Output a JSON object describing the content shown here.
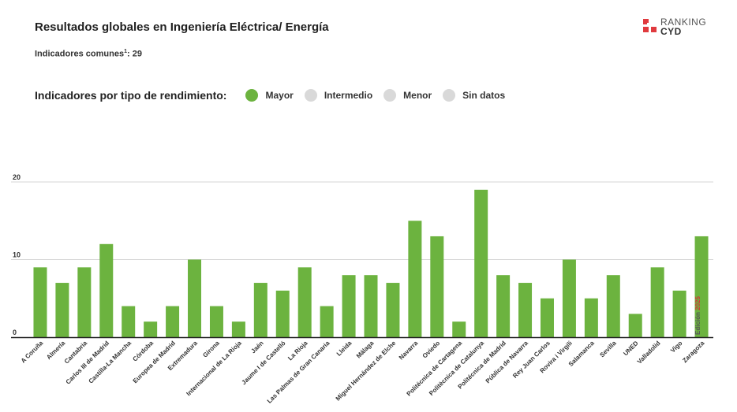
{
  "header": {
    "title": "Resultados globales en Ingeniería Eléctrica/ Energía",
    "subtitle_prefix": "Indicadores comunes",
    "subtitle_sup": "1",
    "subtitle_suffix": ": 29"
  },
  "logo": {
    "line1": "RANKING",
    "line2": "CYD"
  },
  "legend": {
    "caption": "Indicadores por tipo de rendimiento:",
    "items": [
      {
        "label": "Mayor",
        "color": "#6cb33f"
      },
      {
        "label": "Intermedio",
        "color": "#d9d9d9"
      },
      {
        "label": "Menor",
        "color": "#d9d9d9"
      },
      {
        "label": "Sin datos",
        "color": "#d9d9d9"
      }
    ]
  },
  "edition": {
    "label": "Edición",
    "year": "2025"
  },
  "chart_data": {
    "type": "bar",
    "categories": [
      "A Coruña",
      "Almería",
      "Cantabria",
      "Carlos III de Madrid",
      "Castilla-La Mancha",
      "Córdoba",
      "Europea de Madrid",
      "Extremadura",
      "Girona",
      "Internacional de La Rioja",
      "Jaén",
      "Jaume I de Castelló",
      "La Rioja",
      "Las Palmas de Gran Canaria",
      "Lleida",
      "Málaga",
      "Miguel Hernández de Elche",
      "Navarra",
      "Oviedo",
      "Politécnica de Cartagena",
      "Politècnica de Catalunya",
      "Politécnica de Madrid",
      "Pública de Navarra",
      "Rey Juan Carlos",
      "Rovira i Virgili",
      "Salamanca",
      "Sevilla",
      "UNED",
      "Valladolid",
      "Vigo",
      "Zaragoza"
    ],
    "series": [
      {
        "values": [
          9,
          7,
          9,
          12,
          4,
          2,
          4,
          10,
          4,
          2,
          7,
          6,
          9,
          4,
          8,
          8,
          7,
          15,
          13,
          2,
          19,
          8,
          7,
          5,
          10,
          5,
          8,
          3,
          9,
          6,
          13
        ],
        "color": "#6cb33f"
      }
    ],
    "yticks": [
      0,
      10,
      20
    ],
    "ylim": [
      0,
      20
    ],
    "grid": true,
    "legend": "top-left"
  }
}
